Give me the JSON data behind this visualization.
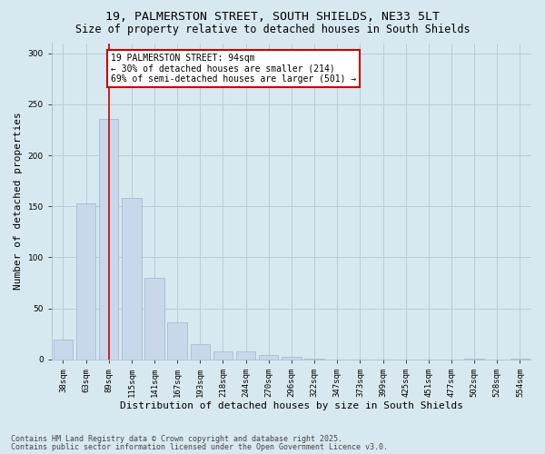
{
  "title_line1": "19, PALMERSTON STREET, SOUTH SHIELDS, NE33 5LT",
  "title_line2": "Size of property relative to detached houses in South Shields",
  "xlabel": "Distribution of detached houses by size in South Shields",
  "ylabel": "Number of detached properties",
  "categories": [
    "38sqm",
    "63sqm",
    "89sqm",
    "115sqm",
    "141sqm",
    "167sqm",
    "193sqm",
    "218sqm",
    "244sqm",
    "270sqm",
    "296sqm",
    "322sqm",
    "347sqm",
    "373sqm",
    "399sqm",
    "425sqm",
    "451sqm",
    "477sqm",
    "502sqm",
    "528sqm",
    "554sqm"
  ],
  "values": [
    19,
    153,
    236,
    158,
    80,
    36,
    15,
    8,
    8,
    4,
    2,
    1,
    0,
    0,
    0,
    0,
    0,
    0,
    1,
    0,
    1
  ],
  "bar_color": "#c8d8ea",
  "bar_edge_color": "#9ab4cc",
  "bar_width": 0.85,
  "vline_color": "#cc0000",
  "vline_index": 2.5,
  "annotation_text": "19 PALMERSTON STREET: 94sqm\n← 30% of detached houses are smaller (214)\n69% of semi-detached houses are larger (501) →",
  "annotation_box_color": "#ffffff",
  "annotation_box_edge": "#cc0000",
  "ylim": [
    0,
    310
  ],
  "yticks": [
    0,
    50,
    100,
    150,
    200,
    250,
    300
  ],
  "grid_color": "#b8ccd8",
  "bg_color": "#d8e8f0",
  "footer_line1": "Contains HM Land Registry data © Crown copyright and database right 2025.",
  "footer_line2": "Contains public sector information licensed under the Open Government Licence v3.0.",
  "title_fontsize": 9.5,
  "subtitle_fontsize": 8.5,
  "tick_fontsize": 6.5,
  "ylabel_fontsize": 8,
  "xlabel_fontsize": 8,
  "annot_fontsize": 7,
  "footer_fontsize": 6
}
